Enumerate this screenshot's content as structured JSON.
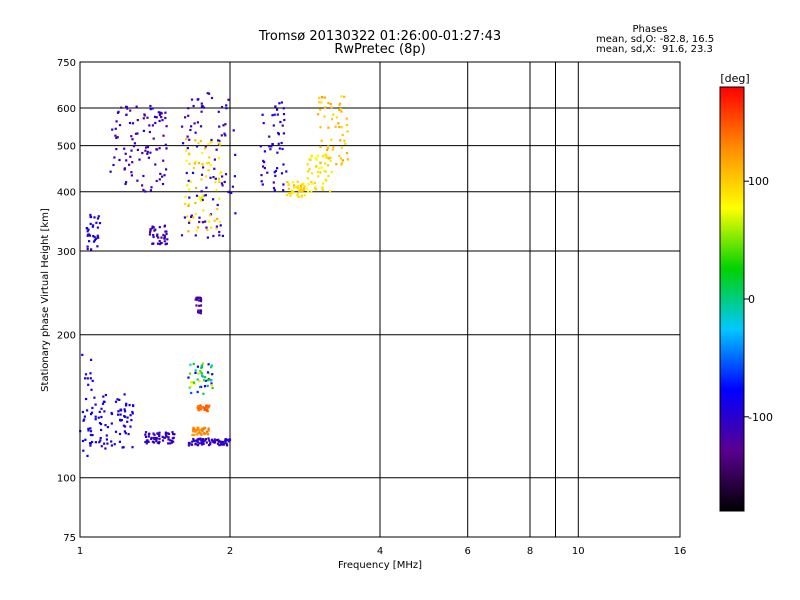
{
  "chart_data": {
    "type": "scatter",
    "title": "Tromsø 20130322 01:26:00-01:27:43",
    "subtitle": "RwPretec (8p)",
    "legend_header": "Phases",
    "stats_line1": "mean, sd,O: -82.8, 16.5",
    "stats_line2": "mean, sd,X:  91.6, 23.3",
    "xlabel": "Frequency [MHz]",
    "ylabel": "Stationary phase Virtual Height [km]",
    "x_scale": "log",
    "y_scale": "log",
    "xlim": [
      1,
      16
    ],
    "ylim": [
      75,
      750
    ],
    "x_ticks": [
      1,
      2,
      4,
      6,
      8,
      10,
      16
    ],
    "x_tick_labels": [
      "1",
      "2",
      "4",
      "6",
      "8",
      "10",
      "16"
    ],
    "x_grid": [
      2,
      4,
      6,
      8,
      9,
      10
    ],
    "y_ticks": [
      75,
      100,
      200,
      300,
      400,
      500,
      600,
      750
    ],
    "y_tick_labels": [
      "75",
      "100",
      "200",
      "300",
      "400",
      "500",
      "600",
      "750"
    ],
    "y_grid": [
      100,
      200,
      300,
      400,
      500,
      600
    ],
    "grid": true,
    "colorbar": {
      "label": "[deg]",
      "range": [
        -180,
        180
      ],
      "ticks": [
        100,
        0,
        -100
      ],
      "tick_labels": [
        "100",
        "0",
        "-100"
      ],
      "colors": [
        "#000000",
        "#5a0090",
        "#0000ff",
        "#00c8ff",
        "#00d200",
        "#ffff00",
        "#ff8c00",
        "#ff0000"
      ]
    },
    "clusters": [
      {
        "f": [
          1.0,
          1.06
        ],
        "h": [
          105,
          195
        ],
        "phase": [
          -100,
          -75
        ]
      },
      {
        "f": [
          1.05,
          1.28
        ],
        "h": [
          115,
          150
        ],
        "phase": [
          -105,
          -80
        ]
      },
      {
        "f": [
          1.35,
          1.55
        ],
        "h": [
          118,
          125
        ],
        "phase": [
          -115,
          -95
        ]
      },
      {
        "f": [
          1.65,
          2.0
        ],
        "h": [
          117,
          121
        ],
        "phase": [
          -115,
          -95
        ]
      },
      {
        "f": [
          1.68,
          1.82
        ],
        "h": [
          123,
          128
        ],
        "phase": [
          120,
          140
        ]
      },
      {
        "f": [
          1.72,
          1.82
        ],
        "h": [
          138,
          142
        ],
        "phase": [
          130,
          150
        ]
      },
      {
        "f": [
          1.65,
          1.85
        ],
        "h": [
          150,
          175
        ],
        "phase": [
          -100,
          110
        ]
      },
      {
        "f": [
          1.03,
          1.1
        ],
        "h": [
          300,
          360
        ],
        "phase": [
          -110,
          -80
        ]
      },
      {
        "f": [
          1.38,
          1.5
        ],
        "h": [
          310,
          340
        ],
        "phase": [
          -120,
          -100
        ]
      },
      {
        "f": [
          1.6,
          2.05
        ],
        "h": [
          320,
          650
        ],
        "phase": [
          -125,
          -85
        ]
      },
      {
        "f": [
          1.62,
          1.92
        ],
        "h": [
          330,
          520
        ],
        "phase": [
          70,
          120
        ]
      },
      {
        "f": [
          2.3,
          2.6
        ],
        "h": [
          400,
          620
        ],
        "phase": [
          -115,
          -80
        ]
      },
      {
        "f": [
          2.6,
          2.85
        ],
        "h": [
          390,
          420
        ],
        "phase": [
          80,
          110
        ]
      },
      {
        "f": [
          2.85,
          3.2
        ],
        "h": [
          400,
          480
        ],
        "phase": [
          70,
          100
        ]
      },
      {
        "f": [
          3.0,
          3.45
        ],
        "h": [
          450,
          640
        ],
        "phase": [
          90,
          120
        ]
      },
      {
        "f": [
          1.15,
          1.5
        ],
        "h": [
          400,
          610
        ],
        "phase": [
          -125,
          -95
        ]
      },
      {
        "f": [
          1.7,
          1.75
        ],
        "h": [
          220,
          240
        ],
        "phase": [
          -125,
          -105
        ]
      }
    ]
  }
}
